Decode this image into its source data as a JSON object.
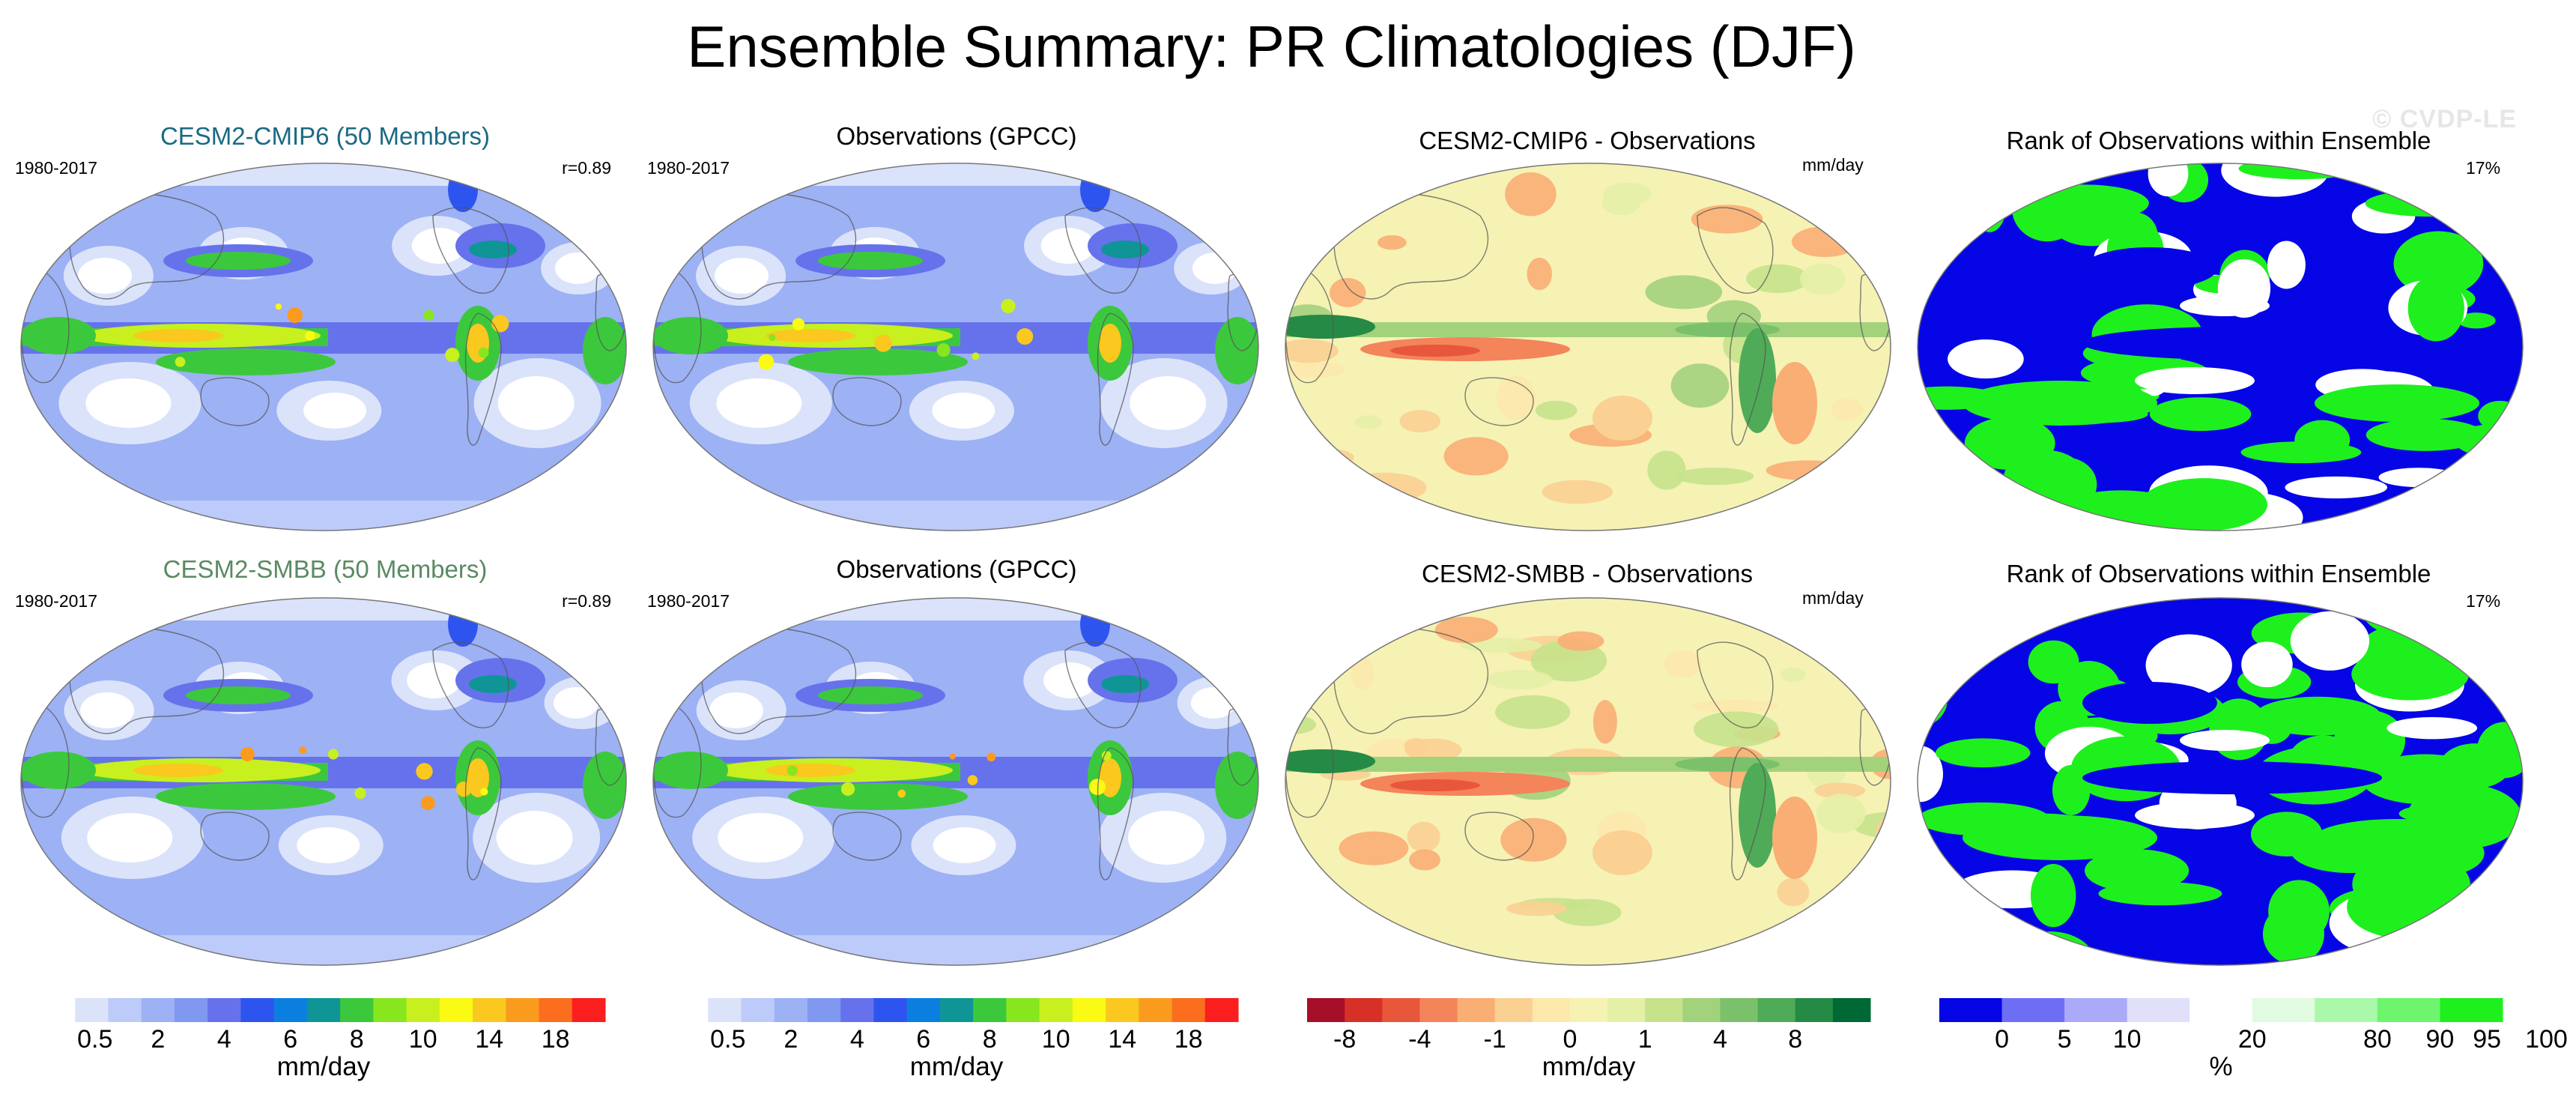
{
  "title": "Ensemble Summary: PR Climatologies (DJF)",
  "watermark": "© CVDP-LE",
  "rows": [
    {
      "model": {
        "title": "CESM2-CMIP6 (50 Members)",
        "title_color": "#1a6a83",
        "period": "1980-2017",
        "corr": "r=0.89"
      },
      "obs": {
        "title": "Observations (GPCC)",
        "period": "1980-2017"
      },
      "diff": {
        "title": "CESM2-CMIP6 - Observations",
        "units": "mm/day"
      },
      "rank": {
        "title": "Rank of Observations within Ensemble",
        "pct": "17%"
      }
    },
    {
      "model": {
        "title": "CESM2-SMBB (50 Members)",
        "title_color": "#5a8a63",
        "period": "1980-2017",
        "corr": "r=0.89"
      },
      "obs": {
        "title": "Observations (GPCC)",
        "period": "1980-2017"
      },
      "diff": {
        "title": "CESM2-SMBB - Observations",
        "units": "mm/day"
      },
      "rank": {
        "title": "Rank of Observations within Ensemble",
        "pct": "17%"
      }
    }
  ],
  "colorbars": {
    "precip": {
      "label": "mm/day",
      "colors": [
        "#ffffff",
        "#dbe3fb",
        "#bccbf9",
        "#9db1f5",
        "#8198f1",
        "#6672eb",
        "#2e54f0",
        "#0b7fe0",
        "#0f9595",
        "#3cc83c",
        "#87e61e",
        "#c8f01e",
        "#fafa14",
        "#fac81e",
        "#fa9b1e",
        "#fa6e1e",
        "#fa1e1e"
      ],
      "ticks": [
        "0.5",
        "2",
        "4",
        "6",
        "8",
        "10",
        "14",
        "18"
      ]
    },
    "diff": {
      "label": "mm/day",
      "colors": [
        "#a50f28",
        "#d73027",
        "#e8563b",
        "#f4845a",
        "#f9ae74",
        "#fbd093",
        "#fde8ac",
        "#f5f2b4",
        "#e5f0a7",
        "#c6e28b",
        "#a3d27c",
        "#7bc16b",
        "#4fab57",
        "#248a45",
        "#006834"
      ],
      "ticks": [
        "-8",
        "-4",
        "-1",
        "0",
        "1",
        "4",
        "8"
      ]
    },
    "rank": {
      "label": "%",
      "colors": [
        "#0505e6",
        "#6e6ef5",
        "#aaaaf8",
        "#e0e0fb",
        "#ffffff",
        "#e0fbe0",
        "#aaf8aa",
        "#6ef56e",
        "#1ef01e"
      ],
      "ticks": [
        "0",
        "5",
        "10",
        "20",
        "80",
        "90",
        "95",
        "100"
      ]
    }
  }
}
